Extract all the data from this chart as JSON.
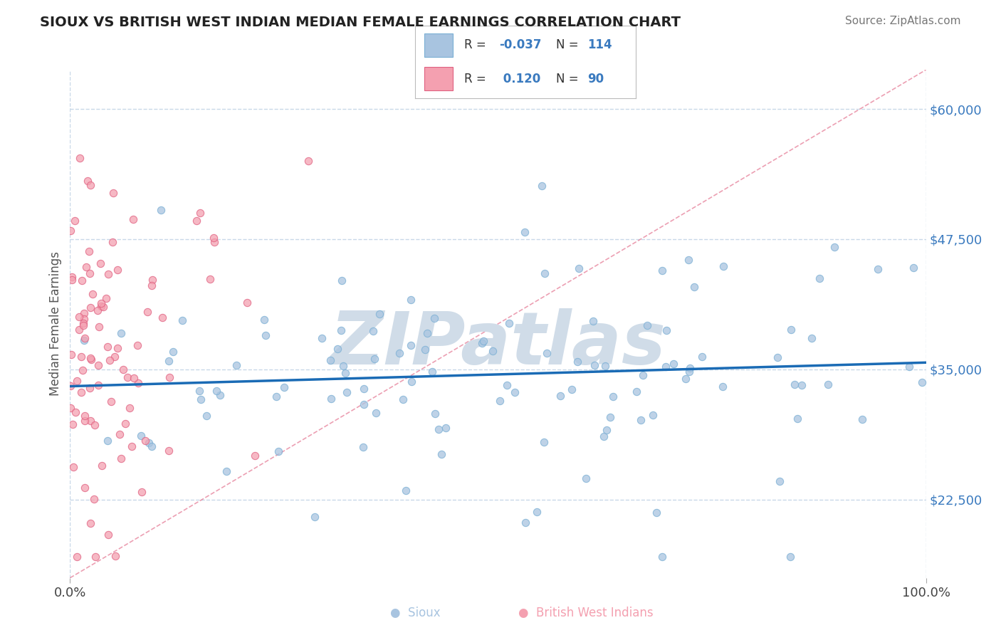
{
  "title": "SIOUX VS BRITISH WEST INDIAN MEDIAN FEMALE EARNINGS CORRELATION CHART",
  "source_text": "Source: ZipAtlas.com",
  "ylabel": "Median Female Earnings",
  "xlim": [
    0,
    1
  ],
  "ylim": [
    15000,
    63750
  ],
  "yticks": [
    22500,
    35000,
    47500,
    60000
  ],
  "ytick_labels": [
    "$22,500",
    "$35,000",
    "$47,500",
    "$60,000"
  ],
  "xtick_labels": [
    "0.0%",
    "100.0%"
  ],
  "sioux_color": "#a8c4e0",
  "sioux_edge": "#7aafd4",
  "bwi_color": "#f4a0b0",
  "bwi_edge": "#e06080",
  "regression_line_color": "#1a6bb5",
  "diagonal_line_color": "#e06080",
  "watermark_text": "ZIPatlas",
  "watermark_color": "#d0dce8",
  "background_color": "#ffffff",
  "grid_color": "#c8d8e8",
  "legend_R1": "-0.037",
  "legend_N1": "114",
  "legend_R2": "0.120",
  "legend_N2": "90",
  "seed": 123
}
